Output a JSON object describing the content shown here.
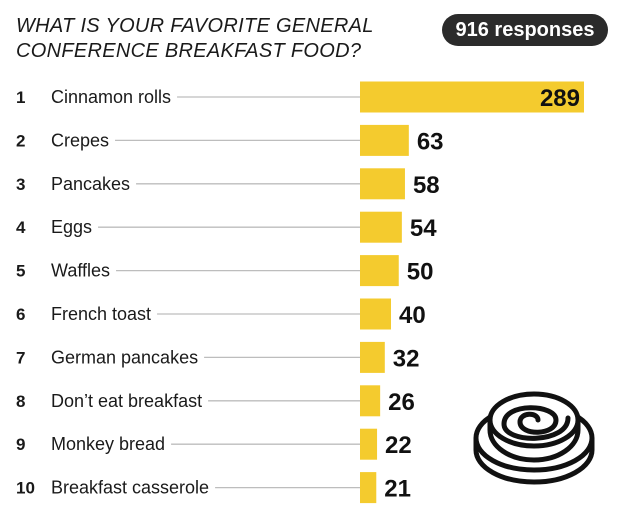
{
  "header": {
    "title": "WHAT IS YOUR FAVORITE GENERAL CONFERENCE BREAKFAST FOOD?",
    "responses": "916 responses"
  },
  "colors": {
    "bar": "#f4cb2e",
    "badge_bg": "#2b2b2b",
    "leader": "#bdbdbd",
    "text": "#1a1a1a"
  },
  "icon": "cinnamon-roll-icon",
  "chart_data": {
    "type": "bar",
    "orientation": "horizontal",
    "title": "WHAT IS YOUR FAVORITE GENERAL CONFERENCE BREAKFAST FOOD?",
    "total_responses": 916,
    "xlim": [
      0,
      289
    ],
    "grid": false,
    "legend": "none",
    "ranks": [
      "1",
      "2",
      "3",
      "4",
      "5",
      "6",
      "7",
      "8",
      "9",
      "10"
    ],
    "categories": [
      "Cinnamon rolls",
      "Crepes",
      "Pancakes",
      "Eggs",
      "Waffles",
      "French toast",
      "German pancakes",
      "Don’t eat breakfast",
      "Monkey bread",
      "Breakfast casserole"
    ],
    "values": [
      289,
      63,
      58,
      54,
      50,
      40,
      32,
      26,
      22,
      21
    ]
  }
}
